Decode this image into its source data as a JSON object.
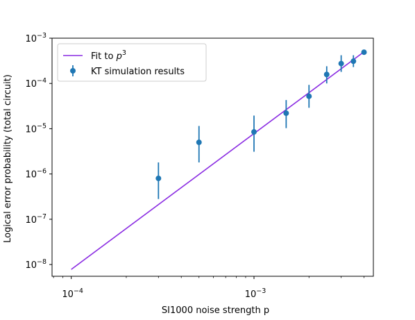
{
  "chart_data": {
    "type": "scatter",
    "title": "",
    "xlabel": "SI1000 noise strength p",
    "ylabel": "Logical error probability (total circuit)",
    "xscale": "log",
    "yscale": "log",
    "xlim": [
      7.85e-05,
      0.0045
    ],
    "ylim": [
      5.5e-09,
      0.001
    ],
    "x_major_ticks": [
      {
        "value": 0.0001,
        "mantissa": "10",
        "exponent": "−4"
      },
      {
        "value": 0.001,
        "mantissa": "10",
        "exponent": "−3"
      }
    ],
    "y_major_ticks": [
      {
        "value": 1e-08,
        "mantissa": "10",
        "exponent": "−8"
      },
      {
        "value": 1e-07,
        "mantissa": "10",
        "exponent": "−7"
      },
      {
        "value": 1e-06,
        "mantissa": "10",
        "exponent": "−6"
      },
      {
        "value": 1e-05,
        "mantissa": "10",
        "exponent": "−5"
      },
      {
        "value": 0.0001,
        "mantissa": "10",
        "exponent": "−4"
      },
      {
        "value": 0.001,
        "mantissa": "10",
        "exponent": "−3"
      }
    ],
    "legend": {
      "position": "upper-left",
      "entries": [
        {
          "label_text": "Fit to ",
          "label_math": "p",
          "label_sup": "3",
          "kind": "line"
        },
        {
          "label_text": "KT simulation results",
          "kind": "errorbar"
        }
      ]
    },
    "series": [
      {
        "name": "Fit to p^3",
        "kind": "line",
        "color": "#8a2be2",
        "x": [
          0.0001,
          0.004
        ],
        "y": [
          7.8e-09,
          0.0005
        ]
      },
      {
        "name": "KT simulation results",
        "kind": "errorbar",
        "color": "#1f77b4",
        "points": [
          {
            "x": 0.0003,
            "y": 8e-07,
            "ylow": 2.8e-07,
            "yhigh": 1.8e-06
          },
          {
            "x": 0.0005,
            "y": 5e-06,
            "ylow": 1.8e-06,
            "yhigh": 1.15e-05
          },
          {
            "x": 0.001,
            "y": 8.5e-06,
            "ylow": 3.1e-06,
            "yhigh": 1.95e-05
          },
          {
            "x": 0.0015,
            "y": 2.2e-05,
            "ylow": 1.03e-05,
            "yhigh": 4.3e-05
          },
          {
            "x": 0.002,
            "y": 5.2e-05,
            "ylow": 2.9e-05,
            "yhigh": 9.3e-05
          },
          {
            "x": 0.0025,
            "y": 0.000158,
            "ylow": 0.0001,
            "yhigh": 0.00024
          },
          {
            "x": 0.003,
            "y": 0.000275,
            "ylow": 0.00018,
            "yhigh": 0.00042
          },
          {
            "x": 0.0035,
            "y": 0.00031,
            "ylow": 0.00023,
            "yhigh": 0.00042
          },
          {
            "x": 0.004,
            "y": 0.00049,
            "ylow": 0.000445,
            "yhigh": 0.00053
          }
        ]
      }
    ]
  }
}
